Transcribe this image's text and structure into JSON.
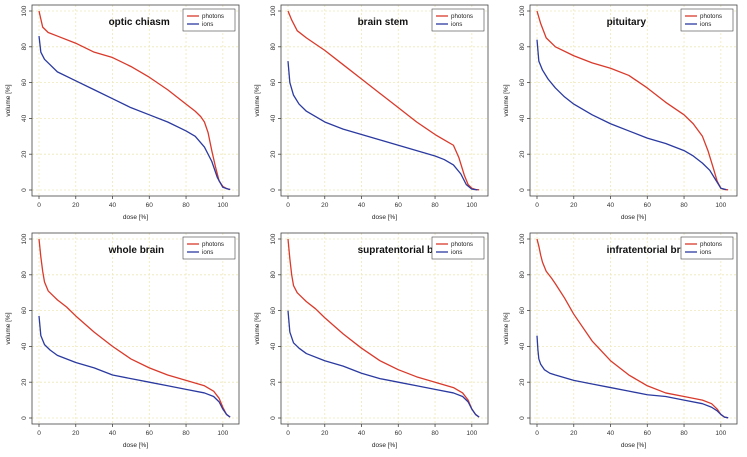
{
  "colors": {
    "photons": "#d93a2b",
    "ions": "#2b3aa0",
    "grid": "#eee8b8",
    "axis": "#444444"
  },
  "chart_data": [
    {
      "type": "line",
      "title": "optic chiasm",
      "xlabel": "dose [%]",
      "ylabel": "volume [%]",
      "xlim": [
        0,
        105
      ],
      "ylim": [
        0,
        100
      ],
      "xticks": [
        "0",
        "20",
        "40",
        "60",
        "80",
        "100"
      ],
      "yticks": [
        "0",
        "20",
        "40",
        "60",
        "80",
        "100"
      ],
      "grid": true,
      "legend": "top-right",
      "series": [
        {
          "name": "photons",
          "x": [
            0,
            2,
            5,
            10,
            20,
            30,
            40,
            50,
            60,
            70,
            80,
            85,
            88,
            90,
            92,
            94,
            96,
            98,
            100,
            102,
            104
          ],
          "y": [
            100,
            91,
            88,
            86,
            82,
            77,
            74,
            69,
            63,
            56,
            48,
            44,
            41,
            38,
            32,
            22,
            13,
            5,
            2,
            0.8,
            0.3
          ]
        },
        {
          "name": "ions",
          "x": [
            0,
            1,
            3,
            6,
            10,
            20,
            30,
            40,
            50,
            60,
            70,
            80,
            85,
            90,
            94,
            97,
            100,
            103,
            104
          ],
          "y": [
            86,
            77,
            73,
            70,
            66,
            61,
            56,
            51,
            46,
            42,
            38,
            33,
            30,
            24,
            16,
            7,
            1.5,
            0.5,
            0.3
          ]
        }
      ]
    },
    {
      "type": "line",
      "title": "brain stem",
      "xlabel": "dose [%]",
      "ylabel": "volume [%]",
      "xlim": [
        0,
        105
      ],
      "ylim": [
        0,
        100
      ],
      "xticks": [
        "0",
        "20",
        "40",
        "60",
        "80",
        "100"
      ],
      "yticks": [
        "0",
        "20",
        "40",
        "60",
        "80",
        "100"
      ],
      "grid": true,
      "legend": "top-right",
      "series": [
        {
          "name": "photons",
          "x": [
            0,
            2,
            5,
            10,
            20,
            30,
            40,
            50,
            60,
            70,
            80,
            85,
            90,
            93,
            96,
            98,
            100,
            102,
            104
          ],
          "y": [
            100,
            95,
            89,
            85,
            78,
            70,
            62,
            54,
            46,
            38,
            31,
            28,
            25,
            18,
            8,
            3,
            1,
            0.3,
            0.1
          ]
        },
        {
          "name": "ions",
          "x": [
            0,
            1,
            3,
            6,
            10,
            15,
            20,
            30,
            40,
            50,
            60,
            70,
            80,
            85,
            90,
            94,
            97,
            100,
            103
          ],
          "y": [
            72,
            60,
            53,
            48,
            44,
            41,
            38,
            34,
            31,
            28,
            25,
            22,
            19,
            17,
            14,
            9,
            3,
            0.5,
            0.1
          ]
        }
      ]
    },
    {
      "type": "line",
      "title": "pituitary",
      "xlabel": "dose [%]",
      "ylabel": "volume [%]",
      "xlim": [
        0,
        105
      ],
      "ylim": [
        0,
        100
      ],
      "xticks": [
        "0",
        "20",
        "40",
        "60",
        "80",
        "100"
      ],
      "yticks": [
        "0",
        "20",
        "40",
        "60",
        "80",
        "100"
      ],
      "grid": true,
      "legend": "top-right",
      "series": [
        {
          "name": "photons",
          "x": [
            0,
            2,
            5,
            10,
            20,
            30,
            40,
            50,
            60,
            70,
            80,
            85,
            90,
            93,
            96,
            98,
            100,
            102,
            104
          ],
          "y": [
            100,
            93,
            85,
            80,
            75,
            71,
            68,
            64,
            57,
            49,
            42,
            37,
            30,
            22,
            12,
            5,
            1,
            0.3,
            0.1
          ]
        },
        {
          "name": "ions",
          "x": [
            0,
            1,
            3,
            6,
            10,
            15,
            20,
            30,
            40,
            50,
            60,
            70,
            80,
            85,
            90,
            94,
            97,
            100,
            103
          ],
          "y": [
            84,
            72,
            67,
            62,
            57,
            52,
            48,
            42,
            37,
            33,
            29,
            26,
            22,
            19,
            15,
            11,
            6,
            1,
            0.2
          ]
        }
      ]
    },
    {
      "type": "line",
      "title": "whole brain",
      "xlabel": "dose [%]",
      "ylabel": "volume [%]",
      "xlim": [
        0,
        105
      ],
      "ylim": [
        0,
        100
      ],
      "xticks": [
        "0",
        "20",
        "40",
        "60",
        "80",
        "100"
      ],
      "yticks": [
        "0",
        "20",
        "40",
        "60",
        "80",
        "100"
      ],
      "grid": true,
      "legend": "top-right",
      "series": [
        {
          "name": "photons",
          "x": [
            0,
            1,
            2,
            3,
            5,
            8,
            10,
            15,
            20,
            30,
            40,
            50,
            60,
            70,
            80,
            90,
            95,
            98,
            100,
            102,
            104
          ],
          "y": [
            100,
            90,
            82,
            76,
            71,
            68,
            66,
            62,
            57,
            48,
            40,
            33,
            28,
            24,
            21,
            18,
            15,
            11,
            6,
            2,
            0.5
          ]
        },
        {
          "name": "ions",
          "x": [
            0,
            1,
            3,
            6,
            10,
            20,
            30,
            40,
            50,
            60,
            70,
            80,
            90,
            95,
            98,
            100,
            102,
            104
          ],
          "y": [
            57,
            46,
            41,
            38,
            35,
            31,
            28,
            24,
            22,
            20,
            18,
            16,
            14,
            12,
            9,
            5,
            2,
            0.5
          ]
        }
      ]
    },
    {
      "type": "line",
      "title": "supratentorial brain",
      "xlabel": "dose [%]",
      "ylabel": "volume [%]",
      "xlim": [
        0,
        105
      ],
      "ylim": [
        0,
        100
      ],
      "xticks": [
        "0",
        "20",
        "40",
        "60",
        "80",
        "100"
      ],
      "yticks": [
        "0",
        "20",
        "40",
        "60",
        "80",
        "100"
      ],
      "grid": true,
      "legend": "top-right",
      "series": [
        {
          "name": "photons",
          "x": [
            0,
            1,
            2,
            3,
            5,
            8,
            10,
            15,
            20,
            30,
            40,
            50,
            60,
            70,
            80,
            90,
            95,
            98,
            100,
            102,
            104
          ],
          "y": [
            100,
            89,
            80,
            74,
            70,
            67,
            65,
            61,
            56,
            47,
            39,
            32,
            27,
            23,
            20,
            17,
            14,
            10,
            5,
            2,
            0.5
          ]
        },
        {
          "name": "ions",
          "x": [
            0,
            1,
            3,
            6,
            10,
            20,
            30,
            40,
            50,
            60,
            70,
            80,
            90,
            95,
            98,
            100,
            102,
            104
          ],
          "y": [
            60,
            48,
            42,
            39,
            36,
            32,
            29,
            25,
            22,
            20,
            18,
            16,
            14,
            12,
            9,
            5,
            2,
            0.5
          ]
        }
      ]
    },
    {
      "type": "line",
      "title": "infratentorial brain",
      "xlabel": "dose [%]",
      "ylabel": "volume [%]",
      "xlim": [
        0,
        105
      ],
      "ylim": [
        0,
        100
      ],
      "xticks": [
        "0",
        "20",
        "40",
        "60",
        "80",
        "100"
      ],
      "yticks": [
        "0",
        "20",
        "40",
        "60",
        "80",
        "100"
      ],
      "grid": true,
      "legend": "top-right",
      "series": [
        {
          "name": "photons",
          "x": [
            0,
            1,
            2,
            3,
            5,
            8,
            10,
            15,
            20,
            30,
            40,
            50,
            60,
            70,
            80,
            90,
            95,
            98,
            100,
            102,
            104
          ],
          "y": [
            100,
            96,
            91,
            87,
            82,
            78,
            75,
            67,
            58,
            43,
            32,
            24,
            18,
            14,
            12,
            10,
            8,
            5,
            2,
            0.5,
            0.1
          ]
        },
        {
          "name": "ions",
          "x": [
            0,
            0.5,
            1,
            2,
            4,
            7,
            10,
            20,
            30,
            40,
            50,
            60,
            70,
            80,
            90,
            95,
            98,
            100,
            102,
            104
          ],
          "y": [
            46,
            38,
            33,
            30,
            27,
            25,
            24,
            21,
            19,
            17,
            15,
            13,
            12,
            10,
            8,
            6,
            4,
            2,
            0.5,
            0.1
          ]
        }
      ]
    }
  ]
}
